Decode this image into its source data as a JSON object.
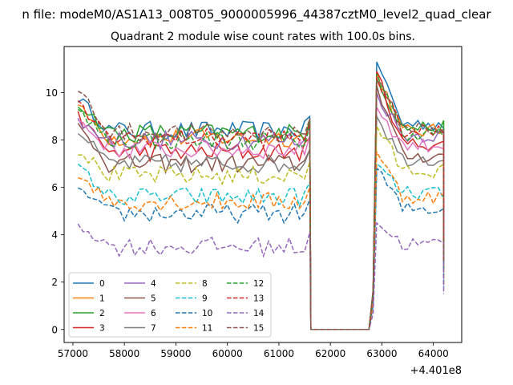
{
  "figure": {
    "suptitle": "n file: modeM0/AS1A13_008T05_9000005996_44387cztM0_level2_quad_clear",
    "offset_text": "+4.401e8"
  },
  "chart_data": {
    "type": "line",
    "title": "Quadrant 2 module wise count rates with 100.0s bins.",
    "xlabel": "",
    "ylabel": "",
    "xlim": [
      56830,
      64550
    ],
    "ylim": [
      -0.55,
      11.95
    ],
    "x_offset": 440100000,
    "xticks": [
      57000,
      58000,
      59000,
      60000,
      61000,
      62000,
      63000,
      64000
    ],
    "xtick_labels": [
      "57000",
      "58000",
      "59000",
      "60000",
      "61000",
      "62000",
      "63000",
      "64000"
    ],
    "yticks": [
      0,
      2,
      4,
      6,
      8,
      10
    ],
    "ytick_labels": [
      "0",
      "2",
      "4",
      "6",
      "8",
      "10"
    ],
    "grid": false,
    "legend": {
      "placement": "lower-left",
      "columns": 4
    },
    "gap": {
      "drop": 61620,
      "low_start": 61700,
      "low_end": 62750,
      "rise": 62830,
      "value": 0.0
    },
    "x_start": 57100,
    "x_step": 100,
    "seg1_count": 46,
    "seg2_start": 62900,
    "seg2_count": 14,
    "x_end": 64200,
    "series": [
      {
        "name": "0",
        "color": "#1f77b4",
        "dash": "solid",
        "base": 8.4,
        "start": 9.8,
        "peak": 11.3,
        "end_val": 3.0
      },
      {
        "name": "1",
        "color": "#ff7f0e",
        "dash": "solid",
        "base": 8.1,
        "start": 9.4,
        "peak": 10.9,
        "end_val": 2.7
      },
      {
        "name": "2",
        "color": "#2ca02c",
        "dash": "solid",
        "base": 8.3,
        "start": 9.6,
        "peak": 10.6,
        "end_val": 2.9
      },
      {
        "name": "3",
        "color": "#d62728",
        "dash": "solid",
        "base": 7.5,
        "start": 9.0,
        "peak": 10.9,
        "end_val": 2.6
      },
      {
        "name": "4",
        "color": "#9467bd",
        "dash": "solid",
        "base": 8.0,
        "start": 8.8,
        "peak": 10.0,
        "end_val": 2.8
      },
      {
        "name": "5",
        "color": "#8c564b",
        "dash": "solid",
        "base": 7.0,
        "start": 8.6,
        "peak": 10.3,
        "end_val": 2.5
      },
      {
        "name": "6",
        "color": "#e377c2",
        "dash": "solid",
        "base": 7.6,
        "start": 8.9,
        "peak": 9.4,
        "end_val": 2.7
      },
      {
        "name": "7",
        "color": "#7f7f7f",
        "dash": "solid",
        "base": 7.0,
        "start": 8.4,
        "peak": 9.0,
        "end_val": 2.4
      },
      {
        "name": "8",
        "color": "#bcbd22",
        "dash": "dashed",
        "base": 6.5,
        "start": 7.6,
        "peak": 8.6,
        "end_val": 2.3
      },
      {
        "name": "9",
        "color": "#17becf",
        "dash": "dashed",
        "base": 5.6,
        "start": 6.9,
        "peak": 7.0,
        "end_val": 2.0
      },
      {
        "name": "10",
        "color": "#1f77b4",
        "dash": "dashed",
        "base": 4.9,
        "start": 5.9,
        "peak": 6.8,
        "end_val": 1.8
      },
      {
        "name": "11",
        "color": "#ff7f0e",
        "dash": "dashed",
        "base": 5.4,
        "start": 6.6,
        "peak": 7.5,
        "end_val": 1.9
      },
      {
        "name": "12",
        "color": "#2ca02c",
        "dash": "dashed",
        "base": 8.0,
        "start": 9.2,
        "peak": 10.8,
        "end_val": 2.8
      },
      {
        "name": "13",
        "color": "#d62728",
        "dash": "dashed",
        "base": 8.1,
        "start": 9.5,
        "peak": 10.6,
        "end_val": 2.9
      },
      {
        "name": "14",
        "color": "#9467bd",
        "dash": "dashed",
        "base": 3.5,
        "start": 4.5,
        "peak": 4.5,
        "end_val": 1.5
      },
      {
        "name": "15",
        "color": "#8c564b",
        "dash": "dashed",
        "base": 8.3,
        "start": 10.2,
        "peak": 10.5,
        "end_val": 2.9
      }
    ]
  }
}
